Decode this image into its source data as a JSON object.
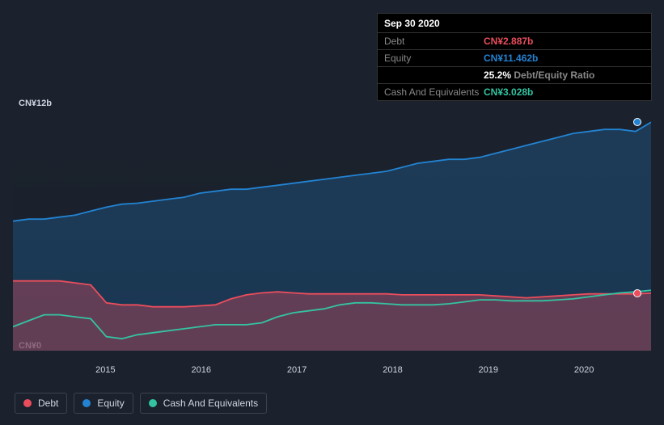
{
  "tooltip": {
    "date": "Sep 30 2020",
    "rows": [
      {
        "label": "Debt",
        "value": "CN¥2.887b",
        "color": "#eb4d5c"
      },
      {
        "label": "Equity",
        "value": "CN¥11.462b",
        "color": "#2383d2"
      },
      {
        "label": "",
        "value": "25.2%",
        "suffix": "Debt/Equity Ratio",
        "color": "#ffffff"
      },
      {
        "label": "Cash And Equivalents",
        "value": "CN¥3.028b",
        "color": "#34c3a2"
      }
    ]
  },
  "yaxis": {
    "top_label": "CN¥12b",
    "bottom_label": "CN¥0",
    "min": 0,
    "max": 12
  },
  "xaxis": {
    "ticks": [
      {
        "label": "2015",
        "x": 0.145
      },
      {
        "label": "2016",
        "x": 0.295
      },
      {
        "label": "2017",
        "x": 0.445
      },
      {
        "label": "2018",
        "x": 0.595
      },
      {
        "label": "2019",
        "x": 0.745
      },
      {
        "label": "2020",
        "x": 0.895
      }
    ]
  },
  "series": {
    "debt": {
      "label": "Debt",
      "color": "#eb4d5c",
      "fill_opacity": 0.35,
      "values": [
        3.5,
        3.5,
        3.5,
        3.5,
        3.4,
        3.3,
        2.4,
        2.3,
        2.3,
        2.2,
        2.2,
        2.2,
        2.25,
        2.3,
        2.6,
        2.8,
        2.9,
        2.95,
        2.9,
        2.85,
        2.85,
        2.85,
        2.85,
        2.85,
        2.85,
        2.8,
        2.8,
        2.8,
        2.8,
        2.8,
        2.8,
        2.75,
        2.7,
        2.65,
        2.7,
        2.75,
        2.8,
        2.85,
        2.85,
        2.85,
        2.85,
        2.887
      ]
    },
    "equity": {
      "label": "Equity",
      "color": "#2383d2",
      "fill_opacity": 0.25,
      "values": [
        6.5,
        6.6,
        6.6,
        6.7,
        6.8,
        7.0,
        7.2,
        7.35,
        7.4,
        7.5,
        7.6,
        7.7,
        7.9,
        8.0,
        8.1,
        8.1,
        8.2,
        8.3,
        8.4,
        8.5,
        8.6,
        8.7,
        8.8,
        8.9,
        9.0,
        9.2,
        9.4,
        9.5,
        9.6,
        9.6,
        9.7,
        9.9,
        10.1,
        10.3,
        10.5,
        10.7,
        10.9,
        11.0,
        11.1,
        11.1,
        11.0,
        11.462
      ]
    },
    "cash": {
      "label": "Cash And Equivalents",
      "color": "#34c3a2",
      "fill_opacity": 0.0,
      "values": [
        1.2,
        1.5,
        1.8,
        1.8,
        1.7,
        1.6,
        0.7,
        0.6,
        0.8,
        0.9,
        1.0,
        1.1,
        1.2,
        1.3,
        1.3,
        1.3,
        1.4,
        1.7,
        1.9,
        2.0,
        2.1,
        2.3,
        2.4,
        2.4,
        2.35,
        2.3,
        2.3,
        2.3,
        2.35,
        2.45,
        2.55,
        2.55,
        2.5,
        2.5,
        2.5,
        2.55,
        2.6,
        2.7,
        2.8,
        2.9,
        2.95,
        3.028
      ]
    }
  },
  "legend": [
    {
      "key": "debt",
      "label": "Debt",
      "color": "#eb4d5c"
    },
    {
      "key": "equity",
      "label": "Equity",
      "color": "#2383d2"
    },
    {
      "key": "cash",
      "label": "Cash And Equivalents",
      "color": "#34c3a2"
    }
  ],
  "chart": {
    "background_color": "#1b222d",
    "gradient_edge_color": "#151a23",
    "line_width": 1.8
  }
}
